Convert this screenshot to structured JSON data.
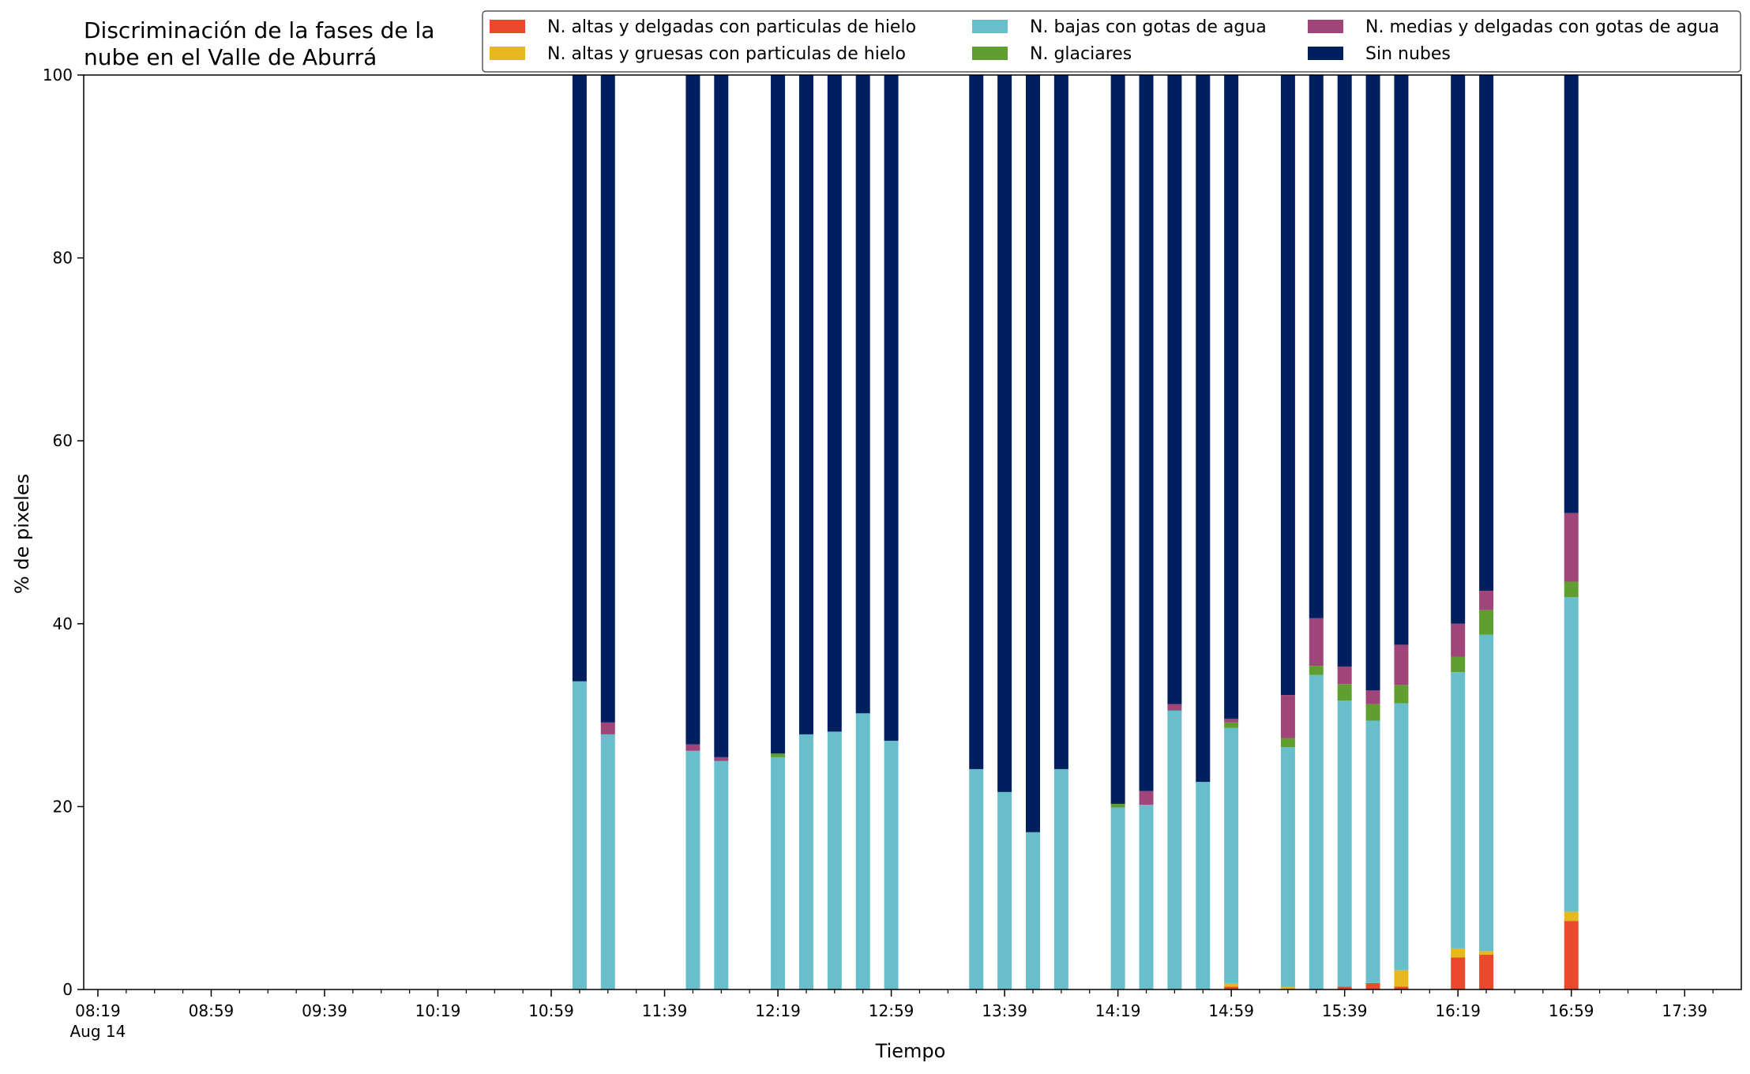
{
  "chart_data": {
    "type": "bar",
    "stacked": true,
    "title": "Discriminación de la fases de la\nnube en el Valle de Aburrá",
    "xlabel": "Tiempo",
    "ylabel": "% de pixeles",
    "ylim": [
      0,
      100
    ],
    "yticks": [
      0,
      20,
      40,
      60,
      80,
      100
    ],
    "xlim": [
      "08:14",
      "17:59"
    ],
    "xticks_major": [
      "08:19",
      "08:59",
      "09:39",
      "10:19",
      "10:59",
      "11:39",
      "12:19",
      "12:59",
      "13:39",
      "14:19",
      "14:59",
      "15:39",
      "16:19",
      "16:59",
      "17:39"
    ],
    "xtick_sublabel": "Aug 14",
    "xticks_minor": [
      "08:29",
      "08:39",
      "08:49",
      "09:09",
      "09:19",
      "09:29",
      "09:49",
      "09:59",
      "10:09",
      "10:29",
      "10:39",
      "10:49",
      "11:09",
      "11:19",
      "11:29",
      "11:49",
      "11:59",
      "12:09",
      "12:29",
      "12:39",
      "12:49",
      "13:09",
      "13:19",
      "13:29",
      "13:49",
      "13:59",
      "14:09",
      "14:29",
      "14:39",
      "14:49",
      "15:09",
      "15:19",
      "15:29",
      "15:49",
      "15:59",
      "16:09",
      "16:29",
      "16:39",
      "16:49",
      "17:09",
      "17:19",
      "17:29",
      "17:49"
    ],
    "grid": false,
    "legend_position": "top-right",
    "legend_columns": 3,
    "categories": [
      "11:09",
      "11:19",
      "11:49",
      "11:59",
      "12:19",
      "12:29",
      "12:39",
      "12:49",
      "12:59",
      "13:29",
      "13:39",
      "13:49",
      "13:59",
      "14:19",
      "14:29",
      "14:39",
      "14:49",
      "14:59",
      "15:19",
      "15:29",
      "15:39",
      "15:49",
      "15:59",
      "16:19",
      "16:29",
      "16:59"
    ],
    "series": [
      {
        "name": "N. altas y delgadas con particulas de hielo",
        "color": "#e94a2c",
        "values": [
          0,
          0,
          0,
          0,
          0,
          0,
          0,
          0,
          0,
          0,
          0,
          0,
          0,
          0,
          0,
          0,
          0,
          0.3,
          0,
          0,
          0.3,
          0.7,
          0.3,
          3.5,
          3.8,
          7.5
        ]
      },
      {
        "name": "N. altas y gruesas con particulas de hielo",
        "color": "#e6b81e",
        "values": [
          0,
          0,
          0,
          0,
          0,
          0,
          0,
          0,
          0,
          0,
          0,
          0,
          0,
          0,
          0,
          0,
          0,
          0.4,
          0.3,
          0,
          0,
          0,
          1.8,
          1.0,
          0.4,
          1.0
        ]
      },
      {
        "name": "N. bajas con gotas de agua",
        "color": "#68bfcb",
        "values": [
          33.7,
          27.9,
          26.1,
          25.0,
          25.4,
          27.9,
          28.2,
          30.2,
          27.2,
          24.1,
          21.6,
          17.2,
          24.1,
          19.9,
          20.2,
          30.5,
          22.7,
          27.9,
          26.2,
          34.4,
          31.3,
          28.7,
          29.2,
          30.2,
          34.6,
          34.4
        ]
      },
      {
        "name": "N. glaciares",
        "color": "#5f9f2f",
        "values": [
          0,
          0,
          0,
          0,
          0.4,
          0,
          0,
          0,
          0,
          0,
          0,
          0,
          0,
          0.4,
          0,
          0,
          0,
          0.6,
          1.0,
          1.0,
          1.8,
          1.8,
          2.0,
          1.7,
          2.7,
          1.7
        ]
      },
      {
        "name": "N. medias y delgadas con gotas de agua",
        "color": "#a1447a",
        "values": [
          0,
          1.3,
          0.7,
          0.4,
          0,
          0,
          0,
          0,
          0,
          0,
          0,
          0,
          0,
          0,
          1.5,
          0.7,
          0,
          0.4,
          4.7,
          5.2,
          1.9,
          1.5,
          4.4,
          3.6,
          2.1,
          7.5
        ]
      },
      {
        "name": "Sin nubes",
        "color": "#001f5f",
        "values": [
          66.3,
          70.8,
          73.2,
          74.6,
          74.2,
          72.1,
          71.8,
          69.8,
          72.8,
          75.9,
          78.4,
          82.8,
          75.9,
          79.7,
          78.3,
          68.8,
          77.3,
          70.4,
          67.8,
          59.4,
          64.7,
          67.3,
          62.3,
          60.0,
          56.4,
          47.9
        ]
      }
    ]
  }
}
